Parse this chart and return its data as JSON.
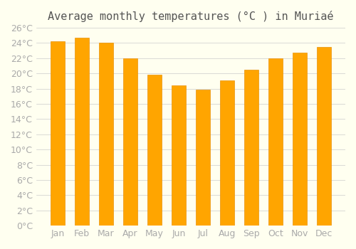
{
  "title": "Average monthly temperatures (°C ) in Muriaé",
  "months": [
    "Jan",
    "Feb",
    "Mar",
    "Apr",
    "May",
    "Jun",
    "Jul",
    "Aug",
    "Sep",
    "Oct",
    "Nov",
    "Dec"
  ],
  "values": [
    24.2,
    24.7,
    24.0,
    22.0,
    19.8,
    18.4,
    17.9,
    19.1,
    20.5,
    22.0,
    22.7,
    23.5
  ],
  "bar_color": "#FFA500",
  "bar_edge_color": "#E8920A",
  "ylim": [
    0,
    26
  ],
  "ytick_step": 2,
  "background_color": "#FFFFF0",
  "grid_color": "#CCCCCC",
  "title_fontsize": 11,
  "tick_fontsize": 9,
  "tick_label_color": "#AAAAAA",
  "title_color": "#555555"
}
